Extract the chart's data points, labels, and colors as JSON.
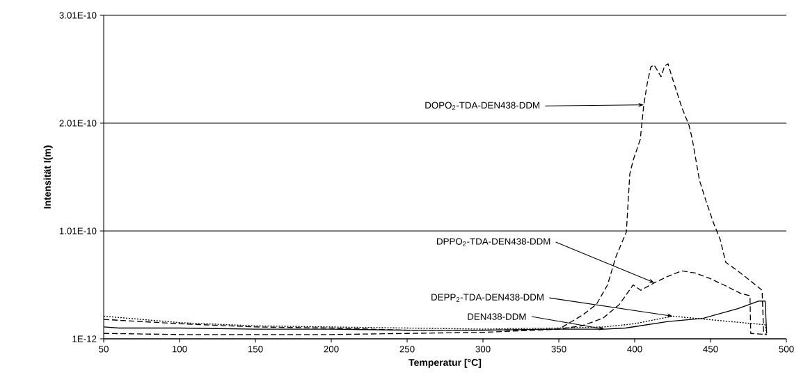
{
  "chart_data": {
    "type": "line",
    "xlabel": "Temperatur [°C]",
    "ylabel": "Intensität I(m)",
    "xlim": [
      50,
      500
    ],
    "xticks": [
      50,
      100,
      150,
      200,
      250,
      300,
      350,
      400,
      450,
      500
    ],
    "ylim": [
      1e-12,
      3.01e-10
    ],
    "yticks": [
      {
        "value": 1e-12,
        "label": "1E-12"
      },
      {
        "value": 1.01e-10,
        "label": "1.01E-10"
      },
      {
        "value": 2.01e-10,
        "label": "2.01E-10"
      },
      {
        "value": 3.01e-10,
        "label": "3.01E-10"
      }
    ],
    "grid": "y",
    "legend": false,
    "marker": "none",
    "series": [
      {
        "name": "DOPO$_{2}$-TDA-DEN438-DDM",
        "color": "#000000",
        "line_style": "dashed",
        "x": [
          50,
          100,
          150,
          200,
          250,
          300,
          350,
          365.6,
          374.8,
          382.1,
          387.6,
          394.5,
          396.8,
          399.1,
          403.7,
          406,
          408.3,
          410.6,
          412.8,
          417.4,
          419.7,
          422,
          424.3,
          426.6,
          431.2,
          435.8,
          438,
          442.7,
          447.2,
          451.8,
          456.4,
          460,
          467.9,
          477,
          484,
          485,
          487
        ],
        "values": [
          1.9e-11,
          1.5e-11,
          1.2e-11,
          1.1e-11,
          9e-12,
          9e-12,
          1e-11,
          2.3e-11,
          3.3e-11,
          5.1e-11,
          7.7e-11,
          1e-10,
          1.54e-10,
          1.67e-10,
          1.86e-10,
          2.18e-10,
          2.38e-10,
          2.53e-10,
          2.55e-10,
          2.44e-10,
          2.54e-10,
          2.56e-10,
          2.45e-10,
          2.35e-10,
          2.15e-10,
          1.99e-10,
          1.86e-10,
          1.48e-10,
          1.28e-10,
          1.09e-10,
          9.3e-11,
          7.2e-11,
          6.4e-11,
          5.4e-11,
          4.6e-11,
          6e-12,
          5e-12
        ]
      },
      {
        "name": "DPPO$_{2}$-TDA-DEN438-DDM",
        "color": "#000000",
        "line_style": "dashed",
        "x": [
          50,
          100,
          150,
          200,
          250,
          300,
          350,
          365,
          379,
          390,
          399,
          404,
          413,
          422,
          431,
          440,
          449.5,
          458.7,
          470,
          476,
          476.5,
          487
        ],
        "values": [
          6e-12,
          5e-12,
          5e-12,
          5e-12,
          6e-12,
          7e-12,
          1e-11,
          1.3e-11,
          2e-11,
          3.3e-11,
          5.1e-11,
          4.6e-11,
          5.3e-11,
          5.9e-11,
          6.4e-11,
          6.2e-11,
          5.7e-11,
          5.1e-11,
          4.3e-11,
          4.1e-11,
          6e-12,
          5e-12
        ]
      },
      {
        "name": "DEPP$_{2}$-TDA-DEN438-DDM",
        "color": "#000000",
        "line_style": "dotted",
        "x": [
          50,
          100,
          150,
          200,
          250,
          300,
          350,
          380,
          400,
          425,
          440,
          471,
          486,
          487
        ],
        "values": [
          2.2e-11,
          1.6e-11,
          1.3e-11,
          1.2e-11,
          1.1e-11,
          1e-11,
          1.1e-11,
          1.2e-11,
          1.5e-11,
          2.2e-11,
          2e-11,
          1.6e-11,
          1.4e-11,
          6e-12
        ]
      },
      {
        "name": "DEN438-DDM",
        "color": "#000000",
        "line_style": "solid",
        "x": [
          50,
          60,
          100,
          150,
          200,
          250,
          300,
          350,
          380,
          394,
          422,
          445,
          468,
          481.6,
          486,
          487
        ],
        "values": [
          1.2e-11,
          1.1e-11,
          1.1e-11,
          1e-11,
          1e-11,
          9e-12,
          9e-12,
          1e-11,
          1e-11,
          1.1e-11,
          1.7e-11,
          2e-11,
          2.9e-11,
          3.6e-11,
          3.6e-11,
          6e-12
        ]
      }
    ]
  }
}
